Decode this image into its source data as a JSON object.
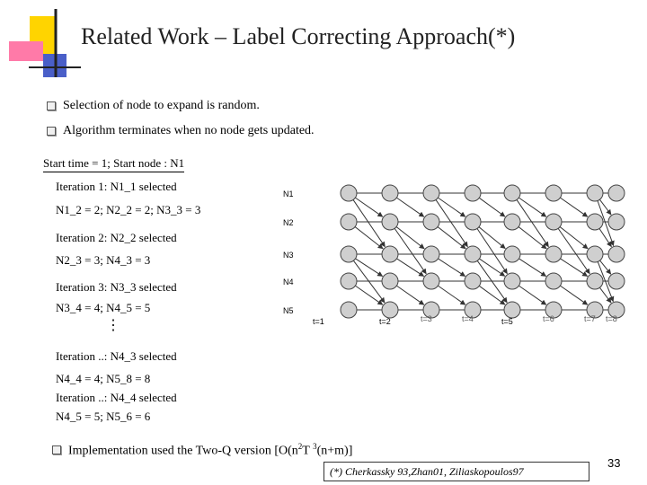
{
  "slide": {
    "title": "Related Work – Label Correcting Approach(*)",
    "bullets": [
      "Selection of node to expand is random.",
      "Algorithm terminates when no node gets updated."
    ],
    "start_line": "Start time = 1; Start node : N1",
    "iterations": [
      "Iteration 1: N1_1 selected",
      "N1_2 = 2; N2_2 = 2; N3_3 = 3",
      "Iteration 2: N2_2 selected",
      "N2_3 = 3; N4_3 = 3",
      "Iteration 3: N3_3 selected",
      "N3_4 = 4; N4_5 = 5",
      "⋮",
      "Iteration ..: N4_3 selected",
      "N4_4 = 4; N5_8 = 8",
      "Iteration ..: N4_4 selected",
      "N4_5 = 5; N5_6 = 6"
    ],
    "implementation": {
      "text": "Implementation used the Two-Q version [O(n",
      "sup1": "2",
      "mid": "T ",
      "sup2": "3",
      "end": "(n+m)]"
    },
    "citation": "(*) Cherkassky 93,Zhan01, Ziliaskopoulos97",
    "page_number": "33"
  },
  "diagram": {
    "row_labels": [
      "N1",
      "N2",
      "N3",
      "N4",
      "N5"
    ],
    "time_labels": [
      "t=1",
      "t=2",
      "t=3",
      "t=4",
      "t=5",
      "t=6",
      "t=7",
      "t=8"
    ],
    "colors": {
      "node_fill": "#cfcfcf",
      "node_stroke": "#444444",
      "edge": "#333333",
      "time_label_gray": "#555555"
    }
  },
  "decor": {
    "colors": {
      "yellow": "#ffd400",
      "pink": "#ff7aa8",
      "blue": "#4a5fc8",
      "dark_line": "#222222"
    }
  }
}
